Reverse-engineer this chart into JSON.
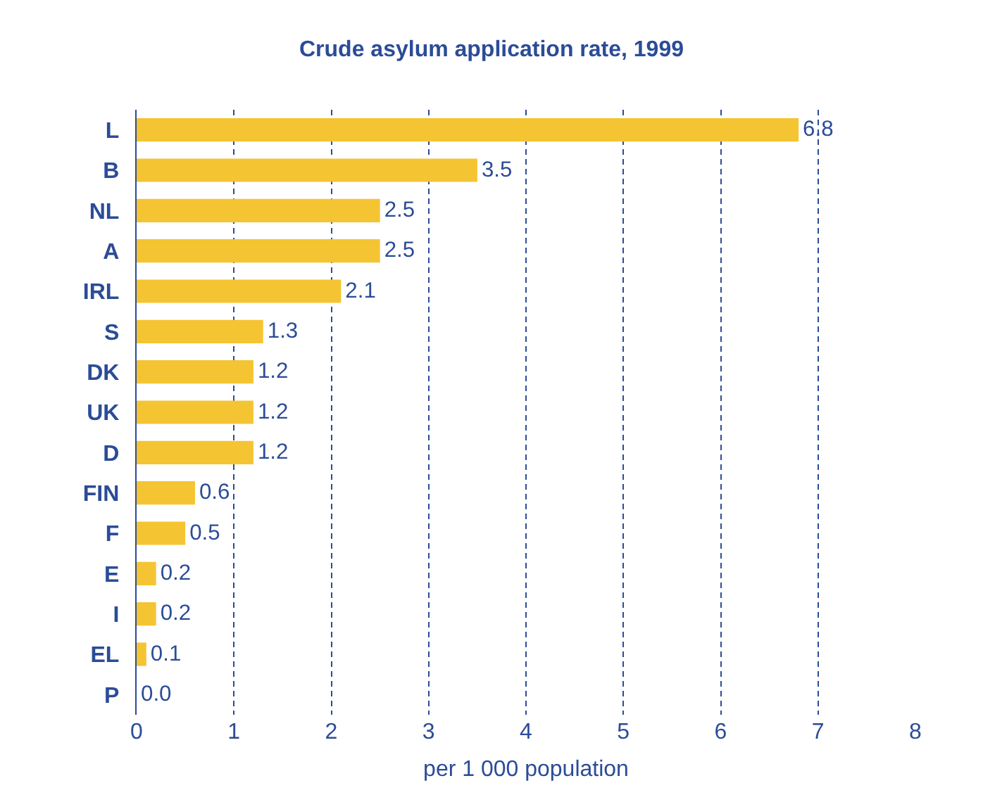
{
  "chart_data": {
    "type": "bar",
    "orientation": "horizontal",
    "title": "Crude asylum application rate, 1999",
    "xlabel": "per 1 000 population",
    "categories": [
      "L",
      "B",
      "NL",
      "A",
      "IRL",
      "S",
      "DK",
      "UK",
      "D",
      "FIN",
      "F",
      "E",
      "I",
      "EL",
      "P"
    ],
    "values": [
      6.8,
      3.5,
      2.5,
      2.5,
      2.1,
      1.3,
      1.2,
      1.2,
      1.2,
      0.6,
      0.5,
      0.2,
      0.2,
      0.1,
      0.0
    ],
    "value_labels": [
      "6.8",
      "3.5",
      "2.5",
      "2.5",
      "2.1",
      "1.3",
      "1.2",
      "1.2",
      "1.2",
      "0.6",
      "0.5",
      "0.2",
      "0.2",
      "0.1",
      "0.0"
    ],
    "color": "#f5c432",
    "xlim": [
      0,
      8
    ],
    "xticks": [
      0,
      1,
      2,
      3,
      4,
      5,
      6,
      7,
      8
    ],
    "grid": "x"
  }
}
